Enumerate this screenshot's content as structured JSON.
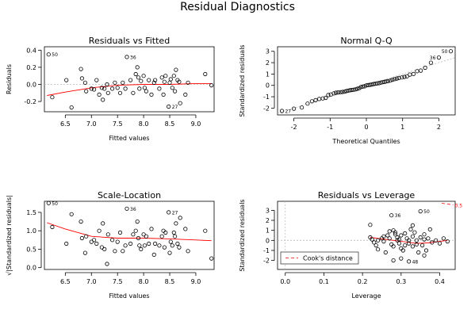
{
  "title": "Residual Diagnostics",
  "chart_data": [
    {
      "type": "scatter",
      "title": "Residuals vs Fitted",
      "xlabel": "Fitted values",
      "ylabel": "Residuals",
      "xlim": [
        6.1,
        9.35
      ],
      "ylim": [
        -0.32,
        0.44
      ],
      "xticks": [
        6.5,
        7.0,
        7.5,
        8.0,
        8.5,
        9.0
      ],
      "xtick_labels": [
        "6.5",
        "7.0",
        "7.5",
        "8.0",
        "8.5",
        "9.0"
      ],
      "yticks": [
        -0.2,
        0.0,
        0.2,
        0.4
      ],
      "ytick_labels": [
        "-0.2",
        "0.0",
        "0.2",
        "0.4"
      ],
      "reference_line": {
        "y": 0
      },
      "points": [
        [
          6.18,
          0.35
        ],
        [
          6.25,
          -0.15
        ],
        [
          6.52,
          0.05
        ],
        [
          6.62,
          -0.27
        ],
        [
          6.8,
          0.18
        ],
        [
          6.82,
          0.07
        ],
        [
          6.88,
          0.02
        ],
        [
          6.9,
          -0.08
        ],
        [
          7.0,
          -0.05
        ],
        [
          7.05,
          -0.06
        ],
        [
          7.1,
          0.05
        ],
        [
          7.15,
          -0.12
        ],
        [
          7.2,
          -0.04
        ],
        [
          7.22,
          -0.18
        ],
        [
          7.25,
          -0.05
        ],
        [
          7.3,
          0.0
        ],
        [
          7.32,
          -0.1
        ],
        [
          7.4,
          -0.05
        ],
        [
          7.45,
          0.02
        ],
        [
          7.5,
          -0.04
        ],
        [
          7.55,
          -0.1
        ],
        [
          7.6,
          0.02
        ],
        [
          7.65,
          -0.05
        ],
        [
          7.68,
          0.32
        ],
        [
          7.75,
          0.05
        ],
        [
          7.8,
          -0.1
        ],
        [
          7.85,
          0.12
        ],
        [
          7.88,
          0.2
        ],
        [
          7.9,
          0.08
        ],
        [
          7.92,
          -0.05
        ],
        [
          7.95,
          0.04
        ],
        [
          8.0,
          0.1
        ],
        [
          8.02,
          -0.04
        ],
        [
          8.05,
          -0.08
        ],
        [
          8.1,
          0.05
        ],
        [
          8.15,
          -0.12
        ],
        [
          8.2,
          0.02
        ],
        [
          8.22,
          0.05
        ],
        [
          8.3,
          -0.05
        ],
        [
          8.35,
          0.08
        ],
        [
          8.38,
          -0.12
        ],
        [
          8.4,
          0.03
        ],
        [
          8.42,
          0.1
        ],
        [
          8.48,
          -0.26
        ],
        [
          8.5,
          0.02
        ],
        [
          8.52,
          0.06
        ],
        [
          8.55,
          -0.04
        ],
        [
          8.58,
          0.1
        ],
        [
          8.6,
          -0.08
        ],
        [
          8.62,
          0.17
        ],
        [
          8.65,
          0.05
        ],
        [
          8.68,
          0.03
        ],
        [
          8.7,
          -0.22
        ],
        [
          8.8,
          -0.12
        ],
        [
          8.85,
          0.02
        ],
        [
          9.18,
          0.12
        ],
        [
          9.3,
          -0.01
        ]
      ],
      "smooth_line": {
        "x": [
          6.15,
          6.5,
          7.0,
          7.5,
          8.0,
          8.5,
          9.0,
          9.3
        ],
        "y": [
          -0.13,
          -0.09,
          -0.04,
          -0.01,
          0.0,
          0.0,
          0.01,
          0.01
        ]
      },
      "annotations": [
        {
          "label": "50",
          "x": 6.18,
          "y": 0.35
        },
        {
          "label": "36",
          "x": 7.68,
          "y": 0.32
        },
        {
          "label": "27",
          "x": 8.48,
          "y": -0.26
        }
      ]
    },
    {
      "type": "scatter",
      "title": "Normal Q-Q",
      "xlabel": "Theoretical Quantiles",
      "ylabel": "Standardized residuals",
      "xlim": [
        -2.45,
        2.45
      ],
      "ylim": [
        -2.6,
        3.4
      ],
      "xticks": [
        -2,
        -1,
        0,
        1,
        2
      ],
      "xtick_labels": [
        "-2",
        "-1",
        "0",
        "1",
        "2"
      ],
      "yticks": [
        -2,
        -1,
        0,
        1,
        2,
        3
      ],
      "ytick_labels": [
        "-2",
        "-1",
        "0",
        "1",
        "2",
        "3"
      ],
      "reference_line": {
        "x1": -2.45,
        "y1": -2.45,
        "x2": 2.45,
        "y2": 2.45
      },
      "points": [
        [
          -2.33,
          -2.25
        ],
        [
          -2.0,
          -2.05
        ],
        [
          -1.78,
          -1.95
        ],
        [
          -1.62,
          -1.6
        ],
        [
          -1.5,
          -1.4
        ],
        [
          -1.4,
          -1.3
        ],
        [
          -1.3,
          -1.2
        ],
        [
          -1.2,
          -1.15
        ],
        [
          -1.12,
          -1.1
        ],
        [
          -1.05,
          -0.85
        ],
        [
          -0.98,
          -0.8
        ],
        [
          -0.9,
          -0.7
        ],
        [
          -0.84,
          -0.65
        ],
        [
          -0.78,
          -0.62
        ],
        [
          -0.72,
          -0.6
        ],
        [
          -0.66,
          -0.58
        ],
        [
          -0.6,
          -0.55
        ],
        [
          -0.55,
          -0.5
        ],
        [
          -0.5,
          -0.46
        ],
        [
          -0.45,
          -0.43
        ],
        [
          -0.4,
          -0.4
        ],
        [
          -0.35,
          -0.38
        ],
        [
          -0.3,
          -0.35
        ],
        [
          -0.25,
          -0.3
        ],
        [
          -0.2,
          -0.25
        ],
        [
          -0.15,
          -0.15
        ],
        [
          -0.1,
          -0.1
        ],
        [
          -0.05,
          -0.08
        ],
        [
          0.0,
          0.0
        ],
        [
          0.05,
          0.02
        ],
        [
          0.1,
          0.05
        ],
        [
          0.15,
          0.08
        ],
        [
          0.2,
          0.12
        ],
        [
          0.25,
          0.15
        ],
        [
          0.3,
          0.18
        ],
        [
          0.35,
          0.2
        ],
        [
          0.4,
          0.25
        ],
        [
          0.45,
          0.28
        ],
        [
          0.5,
          0.3
        ],
        [
          0.55,
          0.35
        ],
        [
          0.6,
          0.38
        ],
        [
          0.66,
          0.42
        ],
        [
          0.72,
          0.5
        ],
        [
          0.78,
          0.55
        ],
        [
          0.84,
          0.6
        ],
        [
          0.9,
          0.65
        ],
        [
          0.98,
          0.7
        ],
        [
          1.05,
          0.75
        ],
        [
          1.12,
          0.8
        ],
        [
          1.2,
          0.95
        ],
        [
          1.3,
          1.0
        ],
        [
          1.4,
          1.25
        ],
        [
          1.5,
          1.3
        ],
        [
          1.62,
          1.55
        ],
        [
          1.78,
          2.0
        ],
        [
          2.0,
          2.45
        ],
        [
          2.33,
          3.0
        ]
      ],
      "annotations": [
        {
          "label": "27",
          "x": -2.33,
          "y": -2.25
        },
        {
          "label": "36",
          "x": 2.0,
          "y": 2.45
        },
        {
          "label": "50",
          "x": 2.33,
          "y": 3.0
        }
      ]
    },
    {
      "type": "scatter",
      "title": "Scale-Location",
      "xlabel": "Fitted values",
      "ylabel": "√|Standardized residuals|",
      "xlim": [
        6.1,
        9.35
      ],
      "ylim": [
        -0.05,
        1.8
      ],
      "xticks": [
        6.5,
        7.0,
        7.5,
        8.0,
        8.5,
        9.0
      ],
      "xtick_labels": [
        "6.5",
        "7.0",
        "7.5",
        "8.0",
        "8.5",
        "9.0"
      ],
      "yticks": [
        0.0,
        0.5,
        1.0,
        1.5
      ],
      "ytick_labels": [
        "0.0",
        "0.5",
        "1.0",
        "1.5"
      ],
      "points": [
        [
          6.18,
          1.75
        ],
        [
          6.25,
          1.1
        ],
        [
          6.52,
          0.65
        ],
        [
          6.62,
          1.45
        ],
        [
          6.8,
          1.25
        ],
        [
          6.82,
          0.8
        ],
        [
          6.88,
          0.4
        ],
        [
          6.9,
          0.85
        ],
        [
          7.0,
          0.7
        ],
        [
          7.05,
          0.75
        ],
        [
          7.1,
          0.65
        ],
        [
          7.15,
          1.0
        ],
        [
          7.2,
          0.55
        ],
        [
          7.22,
          1.2
        ],
        [
          7.25,
          0.5
        ],
        [
          7.3,
          0.1
        ],
        [
          7.32,
          0.9
        ],
        [
          7.4,
          0.75
        ],
        [
          7.45,
          0.45
        ],
        [
          7.5,
          0.7
        ],
        [
          7.55,
          0.95
        ],
        [
          7.6,
          0.45
        ],
        [
          7.65,
          0.6
        ],
        [
          7.68,
          1.6
        ],
        [
          7.75,
          0.65
        ],
        [
          7.8,
          0.9
        ],
        [
          7.85,
          1.0
        ],
        [
          7.88,
          1.25
        ],
        [
          7.9,
          0.8
        ],
        [
          7.92,
          0.6
        ],
        [
          7.95,
          0.5
        ],
        [
          8.0,
          0.9
        ],
        [
          8.02,
          0.6
        ],
        [
          8.05,
          0.85
        ],
        [
          8.1,
          0.65
        ],
        [
          8.15,
          1.05
        ],
        [
          8.2,
          0.35
        ],
        [
          8.22,
          0.65
        ],
        [
          8.3,
          0.6
        ],
        [
          8.35,
          0.85
        ],
        [
          8.38,
          1.0
        ],
        [
          8.4,
          0.55
        ],
        [
          8.42,
          0.95
        ],
        [
          8.48,
          1.5
        ],
        [
          8.5,
          0.4
        ],
        [
          8.52,
          0.7
        ],
        [
          8.55,
          0.6
        ],
        [
          8.58,
          0.95
        ],
        [
          8.6,
          0.85
        ],
        [
          8.62,
          1.2
        ],
        [
          8.65,
          0.65
        ],
        [
          8.68,
          0.55
        ],
        [
          8.7,
          1.35
        ],
        [
          8.8,
          1.05
        ],
        [
          8.85,
          0.45
        ],
        [
          9.18,
          1.0
        ],
        [
          9.3,
          0.25
        ]
      ],
      "smooth_line": {
        "x": [
          6.15,
          6.5,
          7.0,
          7.5,
          8.0,
          8.5,
          9.0,
          9.3
        ],
        "y": [
          1.22,
          1.05,
          0.85,
          0.8,
          0.8,
          0.78,
          0.75,
          0.73
        ]
      },
      "annotations": [
        {
          "label": "50",
          "x": 6.18,
          "y": 1.75
        },
        {
          "label": "36",
          "x": 7.68,
          "y": 1.6
        },
        {
          "label": "27",
          "x": 8.48,
          "y": 1.5
        }
      ]
    },
    {
      "type": "scatter",
      "title": "Residuals vs Leverage",
      "xlabel": "Leverage",
      "ylabel": "Standardized residuals",
      "xlim": [
        -0.02,
        0.44
      ],
      "ylim": [
        -2.9,
        3.9
      ],
      "xticks": [
        0.0,
        0.1,
        0.2,
        0.3,
        0.4
      ],
      "xtick_labels": [
        "0.0",
        "0.1",
        "0.2",
        "0.3",
        "0.4"
      ],
      "yticks": [
        -2,
        -1,
        0,
        1,
        2,
        3
      ],
      "ytick_labels": [
        "-2",
        "-1",
        "0",
        "1",
        "2",
        "3"
      ],
      "reference_line": {
        "y": 0,
        "x": 0
      },
      "points": [
        [
          0.22,
          1.55
        ],
        [
          0.22,
          0.3
        ],
        [
          0.225,
          0.1
        ],
        [
          0.23,
          -0.2
        ],
        [
          0.235,
          -0.5
        ],
        [
          0.24,
          0.0
        ],
        [
          0.25,
          0.2
        ],
        [
          0.255,
          -0.1
        ],
        [
          0.26,
          -1.2
        ],
        [
          0.265,
          0.5
        ],
        [
          0.27,
          0.2
        ],
        [
          0.275,
          -0.4
        ],
        [
          0.275,
          2.5
        ],
        [
          0.28,
          -2.0
        ],
        [
          0.28,
          1.0
        ],
        [
          0.285,
          0.8
        ],
        [
          0.285,
          0.6
        ],
        [
          0.29,
          0.3
        ],
        [
          0.29,
          0.0
        ],
        [
          0.295,
          -0.3
        ],
        [
          0.3,
          -0.8
        ],
        [
          0.3,
          0.5
        ],
        [
          0.305,
          -1.0
        ],
        [
          0.31,
          0.7
        ],
        [
          0.31,
          -0.5
        ],
        [
          0.315,
          0.2
        ],
        [
          0.32,
          -0.3
        ],
        [
          0.32,
          0.0
        ],
        [
          0.325,
          1.1
        ],
        [
          0.33,
          0.4
        ],
        [
          0.33,
          -0.6
        ],
        [
          0.335,
          0.8
        ],
        [
          0.34,
          -0.4
        ],
        [
          0.34,
          0.0
        ],
        [
          0.345,
          -1.2
        ],
        [
          0.35,
          0.3
        ],
        [
          0.35,
          2.9
        ],
        [
          0.355,
          -0.5
        ],
        [
          0.36,
          0.1
        ],
        [
          0.36,
          -1.5
        ],
        [
          0.365,
          -1.0
        ],
        [
          0.37,
          0.2
        ],
        [
          0.375,
          1.1
        ],
        [
          0.38,
          -0.2
        ],
        [
          0.39,
          0.0
        ],
        [
          0.4,
          -0.3
        ],
        [
          0.41,
          0.2
        ],
        [
          0.42,
          -0.1
        ],
        [
          0.27,
          0.9
        ],
        [
          0.28,
          -0.6
        ],
        [
          0.3,
          -1.8
        ],
        [
          0.24,
          -0.9
        ],
        [
          0.33,
          1.5
        ],
        [
          0.36,
          0.6
        ],
        [
          0.295,
          0.1
        ],
        [
          0.255,
          0.4
        ],
        [
          0.32,
          -2.1
        ]
      ],
      "smooth_line": {
        "x": [
          0.22,
          0.25,
          0.28,
          0.31,
          0.34,
          0.37,
          0.4,
          0.42
        ],
        "y": [
          0.3,
          0.15,
          0.0,
          -0.15,
          -0.3,
          -0.25,
          -0.1,
          0.0
        ]
      },
      "cooks_line": {
        "x": [
          0.405,
          0.435
        ],
        "y": [
          3.7,
          3.55
        ]
      },
      "cooks_label": "0.5",
      "legend": {
        "label": "Cook's distance",
        "position": "bottom-left"
      },
      "annotations": [
        {
          "label": "50",
          "x": 0.35,
          "y": 2.9
        },
        {
          "label": "36",
          "x": 0.275,
          "y": 2.5
        },
        {
          "label": "48",
          "x": 0.32,
          "y": -2.1
        }
      ]
    }
  ]
}
